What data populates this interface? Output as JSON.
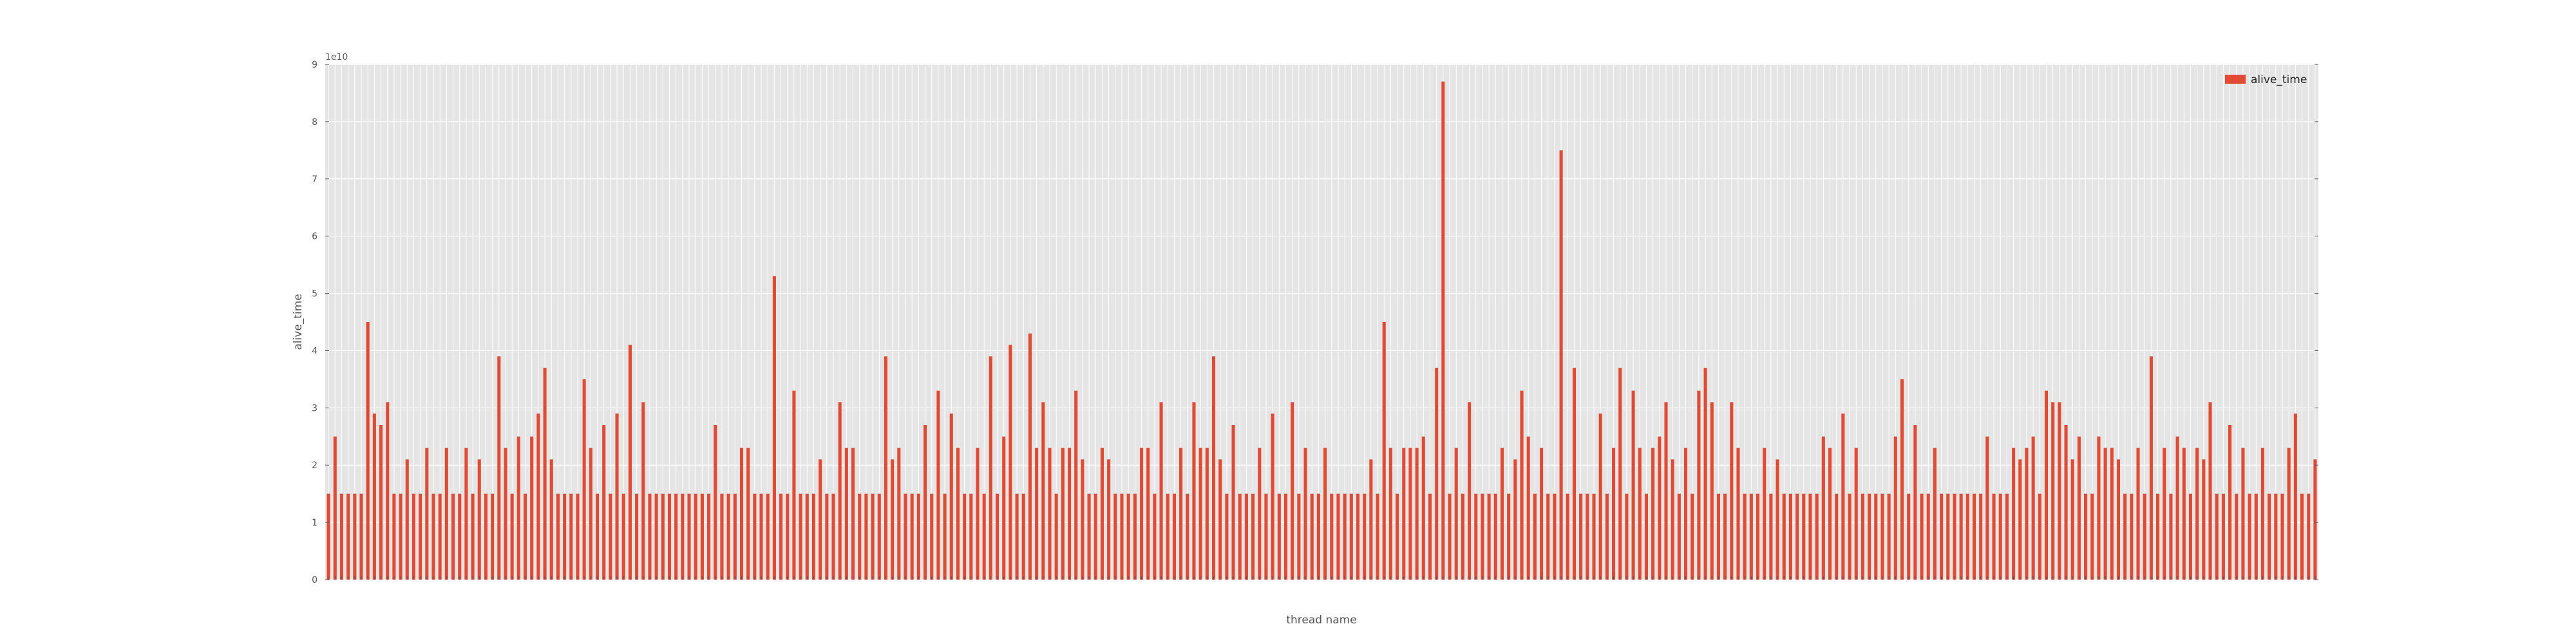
{
  "chart_data": {
    "type": "bar",
    "title": "",
    "xlabel": "thread name",
    "ylabel": "alive_time",
    "offset_text": "1e10",
    "ylim": [
      0,
      9
    ],
    "y_ticks": [
      0,
      1,
      2,
      3,
      4,
      5,
      6,
      7,
      8,
      9
    ],
    "grid": true,
    "legend_position": "top-right",
    "series": [
      {
        "name": "alive_time",
        "color": "#e24a33",
        "values": [
          1.5,
          2.5,
          1.5,
          1.5,
          1.5,
          1.5,
          4.5,
          2.9,
          2.7,
          3.1,
          1.5,
          1.5,
          2.1,
          1.5,
          1.5,
          2.3,
          1.5,
          1.5,
          2.3,
          1.5,
          1.5,
          2.3,
          1.5,
          2.1,
          1.5,
          1.5,
          3.9,
          2.3,
          1.5,
          2.5,
          1.5,
          2.5,
          2.9,
          3.7,
          2.1,
          1.5,
          1.5,
          1.5,
          1.5,
          3.5,
          2.3,
          1.5,
          2.7,
          1.5,
          2.9,
          1.5,
          4.1,
          1.5,
          3.1,
          1.5,
          1.5,
          1.5,
          1.5,
          1.5,
          1.5,
          1.5,
          1.5,
          1.5,
          1.5,
          2.7,
          1.5,
          1.5,
          1.5,
          2.3,
          2.3,
          1.5,
          1.5,
          1.5,
          5.3,
          1.5,
          1.5,
          3.3,
          1.5,
          1.5,
          1.5,
          2.1,
          1.5,
          1.5,
          3.1,
          2.3,
          2.3,
          1.5,
          1.5,
          1.5,
          1.5,
          3.9,
          2.1,
          2.3,
          1.5,
          1.5,
          1.5,
          2.7,
          1.5,
          3.3,
          1.5,
          2.9,
          2.3,
          1.5,
          1.5,
          2.3,
          1.5,
          3.9,
          1.5,
          2.5,
          4.1,
          1.5,
          1.5,
          4.3,
          2.3,
          3.1,
          2.3,
          1.5,
          2.3,
          2.3,
          3.3,
          2.1,
          1.5,
          1.5,
          2.3,
          2.1,
          1.5,
          1.5,
          1.5,
          1.5,
          2.3,
          2.3,
          1.5,
          3.1,
          1.5,
          1.5,
          2.3,
          1.5,
          3.1,
          2.3,
          2.3,
          3.9,
          2.1,
          1.5,
          2.7,
          1.5,
          1.5,
          1.5,
          2.3,
          1.5,
          2.9,
          1.5,
          1.5,
          3.1,
          1.5,
          2.3,
          1.5,
          1.5,
          2.3,
          1.5,
          1.5,
          1.5,
          1.5,
          1.5,
          1.5,
          2.1,
          1.5,
          4.5,
          2.3,
          1.5,
          2.3,
          2.3,
          2.3,
          2.5,
          1.5,
          3.7,
          8.7,
          1.5,
          2.3,
          1.5,
          3.1,
          1.5,
          1.5,
          1.5,
          1.5,
          2.3,
          1.5,
          2.1,
          3.3,
          2.5,
          1.5,
          2.3,
          1.5,
          1.5,
          7.5,
          1.5,
          3.7,
          1.5,
          1.5,
          1.5,
          2.9,
          1.5,
          2.3,
          3.7,
          1.5,
          3.3,
          2.3,
          1.5,
          2.3,
          2.5,
          3.1,
          2.1,
          1.5,
          2.3,
          1.5,
          3.3,
          3.7,
          3.1,
          1.5,
          1.5,
          3.1,
          2.3,
          1.5,
          1.5,
          1.5,
          2.3,
          1.5,
          2.1,
          1.5,
          1.5,
          1.5,
          1.5,
          1.5,
          1.5,
          2.5,
          2.3,
          1.5,
          2.9,
          1.5,
          2.3,
          1.5,
          1.5,
          1.5,
          1.5,
          1.5,
          2.5,
          3.5,
          1.5,
          2.7,
          1.5,
          1.5,
          2.3,
          1.5,
          1.5,
          1.5,
          1.5,
          1.5,
          1.5,
          1.5,
          2.5,
          1.5,
          1.5,
          1.5,
          2.3,
          2.1,
          2.3,
          2.5,
          1.5,
          3.3,
          3.1,
          3.1,
          2.7,
          2.1,
          2.5,
          1.5,
          1.5,
          2.5,
          2.3,
          2.3,
          2.1,
          1.5,
          1.5,
          2.3,
          1.5,
          3.9,
          1.5,
          2.3,
          1.5,
          2.5,
          2.3,
          1.5,
          2.3,
          2.1,
          3.1,
          1.5,
          1.5,
          2.7,
          1.5,
          2.3,
          1.5,
          1.5,
          2.3,
          1.5,
          1.5,
          1.5,
          2.3,
          2.9,
          1.5,
          1.5,
          2.1
        ]
      }
    ]
  }
}
